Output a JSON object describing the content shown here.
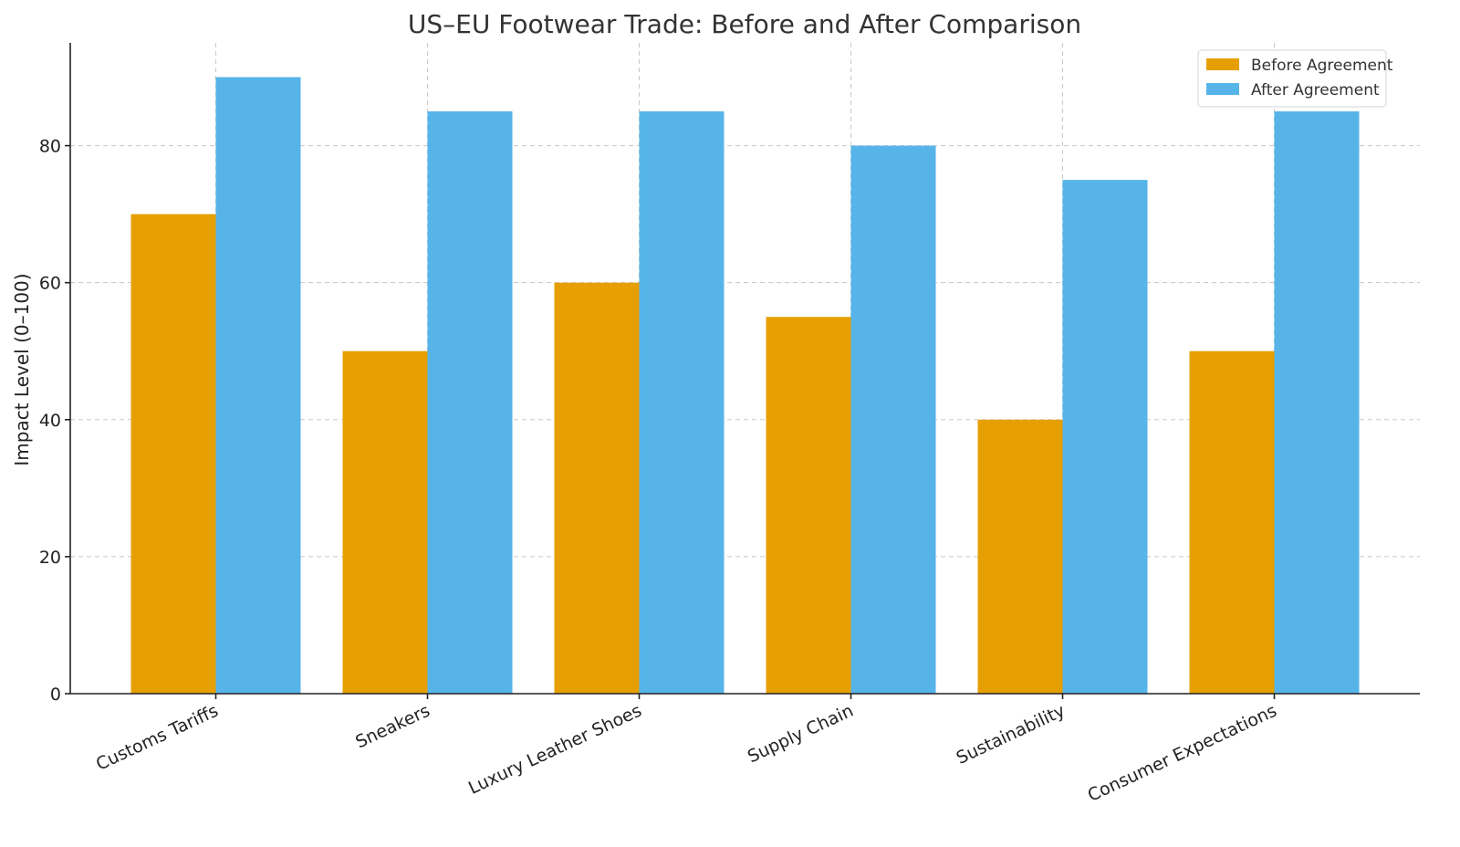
{
  "chart_data": {
    "type": "bar",
    "title": "US–EU Footwear Trade: Before and After Comparison",
    "xlabel": "",
    "ylabel": "Impact Level (0–100)",
    "categories": [
      "Customs Tariffs",
      "Sneakers",
      "Luxury Leather Shoes",
      "Supply Chain",
      "Sustainability",
      "Consumer Expectations"
    ],
    "series": [
      {
        "name": "Before Agreement",
        "color": "#E69F00",
        "values": [
          70,
          50,
          60,
          55,
          40,
          50
        ]
      },
      {
        "name": "After Agreement",
        "color": "#56B4E9",
        "values": [
          90,
          85,
          85,
          80,
          75,
          85
        ]
      }
    ],
    "ylim": [
      0,
      95
    ],
    "yticks": [
      0,
      20,
      40,
      60,
      80
    ],
    "grid": true,
    "legend_position": "top-right"
  }
}
